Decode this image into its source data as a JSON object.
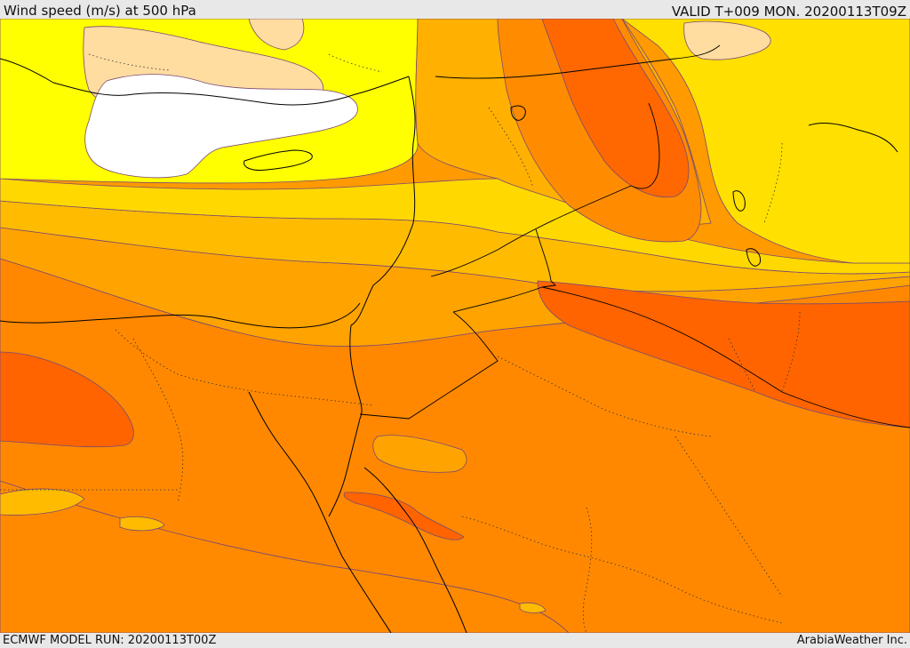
{
  "header": {
    "title": "Wind speed (m/s) at 500 hPa",
    "valid_time": "VALID T+009 MON. 20200113T09Z"
  },
  "footer": {
    "model_run": "ECMWF MODEL RUN: 20200113T00Z",
    "credit": "ArabiaWeather Inc."
  },
  "palette": {
    "white_band": "#ffffff",
    "pale_peach": "#ffdca0",
    "yellow": "#ffff00",
    "gold": "#ffdd00",
    "amber": "#ffbb00",
    "orange_light": "#ff9f00",
    "orange": "#ff8a00",
    "orange_dark": "#ff6a00",
    "contour_line": "#8a4a6a",
    "coastline": "#000000"
  }
}
